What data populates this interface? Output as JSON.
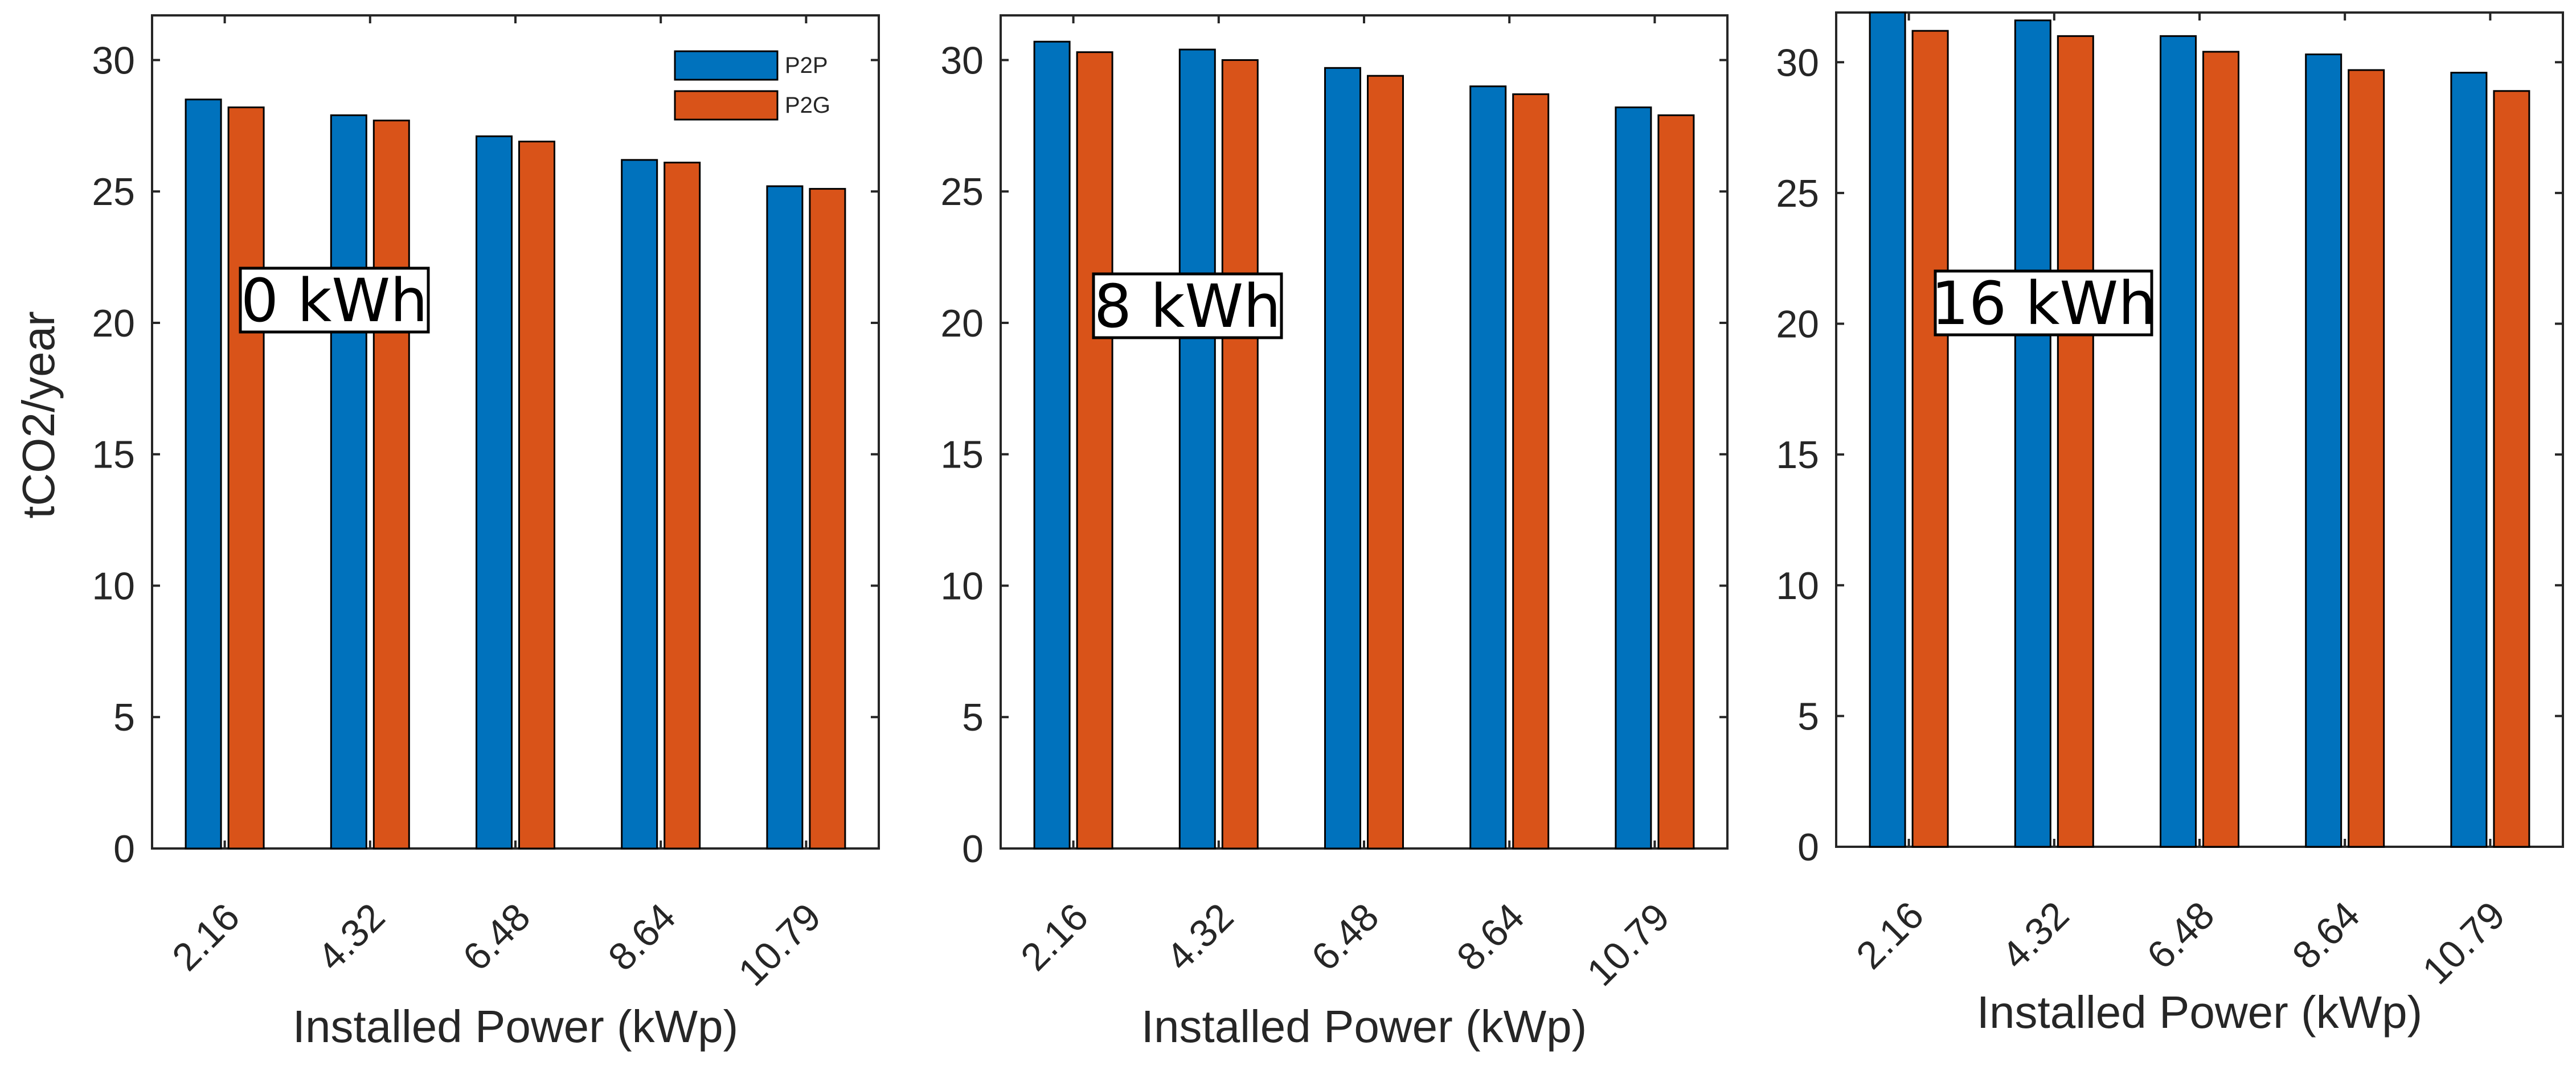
{
  "chart_data": [
    {
      "type": "bar",
      "annotation": "0 kWh",
      "categories": [
        "2.16",
        "4.32",
        "6.48",
        "8.64",
        "10.79"
      ],
      "series": [
        {
          "name": "P2P",
          "values": [
            28.5,
            27.9,
            27.1,
            26.2,
            25.2
          ]
        },
        {
          "name": "P2G",
          "values": [
            28.2,
            27.7,
            26.9,
            26.1,
            25.1
          ]
        }
      ],
      "xlabel": "Installed Power (kWp)",
      "ylabel": "tCO2/year",
      "ylim": [
        0,
        31.7
      ],
      "yticks": [
        0,
        5,
        10,
        15,
        20,
        25,
        30
      ],
      "legend": "top-right",
      "grid": false
    },
    {
      "type": "bar",
      "annotation": "8 kWh",
      "categories": [
        "2.16",
        "4.32",
        "6.48",
        "8.64",
        "10.79"
      ],
      "series": [
        {
          "name": "P2P",
          "values": [
            30.7,
            30.4,
            29.7,
            29.0,
            28.2
          ]
        },
        {
          "name": "P2G",
          "values": [
            30.3,
            30.0,
            29.4,
            28.7,
            27.9
          ]
        }
      ],
      "xlabel": "Installed Power (kWp)",
      "ylabel": "",
      "ylim": [
        0,
        31.7
      ],
      "yticks": [
        0,
        5,
        10,
        15,
        20,
        25,
        30
      ],
      "grid": false
    },
    {
      "type": "bar",
      "annotation": "16 kWh",
      "categories": [
        "2.16",
        "4.32",
        "6.48",
        "8.64",
        "10.79"
      ],
      "series": [
        {
          "name": "P2P",
          "values": [
            31.9,
            31.6,
            31.0,
            30.3,
            29.6
          ]
        },
        {
          "name": "P2G",
          "values": [
            31.2,
            31.0,
            30.4,
            29.7,
            28.9
          ]
        }
      ],
      "xlabel": "Installed Power (kWp)",
      "ylabel": "",
      "ylim": [
        0,
        31.9
      ],
      "yticks": [
        0,
        5,
        10,
        15,
        20,
        25,
        30
      ],
      "grid": false
    }
  ],
  "colors": {
    "P2P": "#0072BD",
    "P2G": "#D95319",
    "axis": "#262626"
  }
}
